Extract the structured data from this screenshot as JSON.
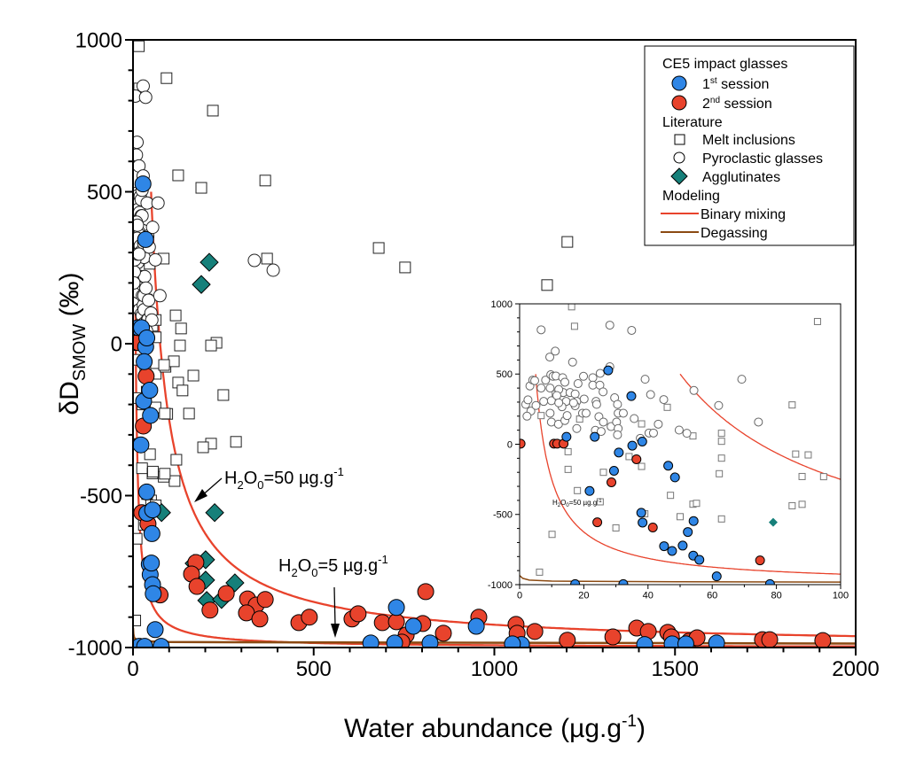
{
  "chart_data": [
    {
      "type": "scatter",
      "panel": "main",
      "xlabel": "Water abundance (µg.g",
      "xlabel_sup": "-1",
      "xlabel_end": ")",
      "ylabel_delta": "δD",
      "ylabel_sub": "SMOW",
      "ylabel_unit": " (‰)",
      "xlim": [
        0,
        2000
      ],
      "ylim": [
        -1000,
        1000
      ],
      "xticks": [
        0,
        500,
        1000,
        1500,
        2000
      ],
      "yticks": [
        -1000,
        -500,
        0,
        500,
        1000
      ],
      "grid": false,
      "legend_placement": "top-right",
      "legend": {
        "group1": "CE5 impact glasses",
        "s1_pre": "1",
        "s1_sup": "st",
        "s1_post": " session",
        "s2_pre": "2",
        "s2_sup": "nd",
        "s2_post": " session",
        "group2": "Literature",
        "melt": "Melt inclusions",
        "pyro": "Pyroclastic glasses",
        "agg": "Agglutinates",
        "group3": "Modeling",
        "mix": "Binary mixing",
        "degas": "Degassing"
      },
      "annotations": [
        {
          "pre": "H",
          "sub1": "2",
          "mid": "O",
          "sub2": "0",
          "post": "=50 µg.g",
          "sup": "-1"
        },
        {
          "pre": "H",
          "sub1": "2",
          "mid": "O",
          "sub2": "0",
          "post": "=5 µg.g",
          "sup": "-1"
        }
      ]
    },
    {
      "type": "scatter",
      "panel": "inset",
      "xlim": [
        0,
        100
      ],
      "ylim": [
        -1000,
        1000
      ],
      "xticks": [
        0,
        20,
        40,
        60,
        80,
        100
      ],
      "yticks": [
        -1000,
        -500,
        0,
        500,
        1000
      ],
      "annotation": {
        "pre": "H",
        "sub1": "2",
        "mid": "O",
        "sub2": "0",
        "post": "=50 µg.g",
        "sup": "-1"
      }
    }
  ],
  "series": {
    "session1": {
      "color": "#2f86e6",
      "points": [
        [
          27.6,
          526
        ],
        [
          14.6,
          53
        ],
        [
          23.4,
          53
        ],
        [
          34.8,
          343
        ],
        [
          35.1,
          -10
        ],
        [
          38.2,
          19
        ],
        [
          30.9,
          -59
        ],
        [
          29.4,
          -189
        ],
        [
          21.8,
          -333
        ],
        [
          46.3,
          -153
        ],
        [
          48.4,
          -236
        ],
        [
          37.9,
          -488
        ],
        [
          38.3,
          -558
        ],
        [
          54.2,
          -547
        ],
        [
          52.4,
          -625
        ],
        [
          45.0,
          -726
        ],
        [
          47.5,
          -760
        ],
        [
          50.8,
          -722
        ],
        [
          54.1,
          -793
        ],
        [
          56.0,
          -823
        ],
        [
          61.4,
          -941
        ],
        [
          17.3,
          -996
        ],
        [
          32.3,
          -996
        ],
        [
          78,
          -996
        ],
        [
          729,
          -868
        ],
        [
          776,
          -930
        ],
        [
          950,
          -930
        ],
        [
          724,
          -985
        ],
        [
          658,
          -985
        ],
        [
          822,
          -985
        ],
        [
          1075,
          -990
        ],
        [
          1416,
          -990
        ],
        [
          1492,
          -988
        ],
        [
          1615,
          -985
        ],
        [
          1050,
          -988
        ],
        [
          1530,
          -988
        ]
      ]
    },
    "session2": {
      "color": "#e8432c",
      "points": [
        [
          0.3,
          4
        ],
        [
          10.7,
          4
        ],
        [
          11.7,
          4
        ],
        [
          13.7,
          4
        ],
        [
          36.4,
          -107
        ],
        [
          28.6,
          -271
        ],
        [
          24.2,
          -556
        ],
        [
          41.5,
          -593
        ],
        [
          74.9,
          -827
        ],
        [
          174,
          -720
        ],
        [
          162,
          -758
        ],
        [
          177,
          -799
        ],
        [
          213,
          -877
        ],
        [
          258,
          -822
        ],
        [
          317,
          -840
        ],
        [
          341,
          -860
        ],
        [
          366,
          -842
        ],
        [
          314,
          -886
        ],
        [
          351,
          -906
        ],
        [
          459,
          -918
        ],
        [
          488,
          -900
        ],
        [
          606,
          -906
        ],
        [
          623,
          -889
        ],
        [
          690,
          -918
        ],
        [
          729,
          -915
        ],
        [
          756,
          -959
        ],
        [
          744,
          -982
        ],
        [
          802,
          -921
        ],
        [
          810,
          -816
        ],
        [
          859,
          -953
        ],
        [
          957,
          -900
        ],
        [
          1060,
          -924
        ],
        [
          1063,
          -953
        ],
        [
          1112,
          -947
        ],
        [
          1202,
          -976
        ],
        [
          1328,
          -965
        ],
        [
          1394,
          -936
        ],
        [
          1426,
          -947
        ],
        [
          1480,
          -950
        ],
        [
          1490,
          -965
        ],
        [
          1539,
          -979
        ],
        [
          1561,
          -968
        ],
        [
          1742,
          -974
        ],
        [
          1762,
          -974
        ],
        [
          1909,
          -977
        ]
      ]
    },
    "melt_inclusions": {
      "color": "#ffffff",
      "points": [
        [
          16.2,
          979
        ],
        [
          17.1,
          840
        ],
        [
          92.8,
          874
        ],
        [
          6.7,
          204
        ],
        [
          11.1,
          358
        ],
        [
          18.7,
          179
        ],
        [
          38,
          145
        ],
        [
          46,
          263
        ],
        [
          54,
          59
        ],
        [
          62.9,
          78
        ],
        [
          62.9,
          21
        ],
        [
          62.9,
          -99
        ],
        [
          62.2,
          -210
        ],
        [
          89.9,
          -76
        ],
        [
          94.7,
          -231
        ],
        [
          84.9,
          280
        ],
        [
          84.9,
          -438
        ],
        [
          15.1,
          -53
        ],
        [
          15.1,
          -179
        ],
        [
          26.1,
          -200
        ],
        [
          34.1,
          -88
        ],
        [
          38,
          -158
        ],
        [
          18,
          -330
        ],
        [
          25.1,
          -410
        ],
        [
          47,
          -364
        ],
        [
          54,
          -427
        ],
        [
          55.1,
          -421
        ],
        [
          50,
          -516
        ],
        [
          62.9,
          -532
        ],
        [
          30,
          -596
        ],
        [
          10.1,
          -642
        ],
        [
          6.2,
          -911
        ],
        [
          39,
          -495
        ],
        [
          221,
          767
        ],
        [
          125,
          554
        ],
        [
          189,
          513
        ],
        [
          366,
          537
        ],
        [
          680,
          315
        ],
        [
          753,
          251
        ],
        [
          371,
          280
        ],
        [
          1202,
          335
        ],
        [
          1146,
          193
        ],
        [
          118,
          93
        ],
        [
          133,
          50
        ],
        [
          130,
          -6
        ],
        [
          231,
          3
        ],
        [
          216,
          -6
        ],
        [
          125,
          -128
        ],
        [
          137,
          -154
        ],
        [
          167,
          -105
        ],
        [
          155,
          -230
        ],
        [
          113,
          -58
        ],
        [
          250,
          -169
        ],
        [
          216,
          -329
        ],
        [
          285,
          -323
        ],
        [
          194,
          -341
        ],
        [
          120,
          -382
        ],
        [
          115,
          -452
        ],
        [
          86,
          -70
        ],
        [
          88,
          -428
        ],
        [
          88,
          -230
        ]
      ]
    },
    "pyroclastic_glasses": {
      "color": "#ffffff",
      "points": [
        [
          6.7,
          815
        ],
        [
          9.4,
          621
        ],
        [
          11.1,
          663
        ],
        [
          16.5,
          585
        ],
        [
          28.1,
          848
        ],
        [
          34.9,
          811
        ],
        [
          28.1,
          552
        ],
        [
          1.9,
          284
        ],
        [
          2.6,
          316
        ],
        [
          3.2,
          415
        ],
        [
          4.1,
          457
        ],
        [
          4.7,
          453
        ],
        [
          6.7,
          400
        ],
        [
          8.1,
          457
        ],
        [
          9.7,
          495
        ],
        [
          10.4,
          484
        ],
        [
          11.3,
          486
        ],
        [
          13.4,
          474
        ],
        [
          14.1,
          442
        ],
        [
          18.2,
          432
        ],
        [
          19.9,
          484
        ],
        [
          22.8,
          474
        ],
        [
          25.1,
          505
        ],
        [
          22.8,
          421
        ],
        [
          25,
          421
        ],
        [
          26,
          373
        ],
        [
          13.6,
          368
        ],
        [
          15.7,
          368
        ],
        [
          17.3,
          358
        ],
        [
          9.5,
          400
        ],
        [
          12.2,
          390
        ],
        [
          7.5,
          305
        ],
        [
          9.9,
          310
        ],
        [
          11.6,
          347
        ],
        [
          14.5,
          305
        ],
        [
          17.8,
          305
        ],
        [
          20.1,
          322
        ],
        [
          23.8,
          305
        ],
        [
          24,
          284
        ],
        [
          17.3,
          274
        ],
        [
          13.2,
          267
        ],
        [
          9.5,
          221
        ],
        [
          9.9,
          158
        ],
        [
          12.1,
          143
        ],
        [
          14.1,
          169
        ],
        [
          14.8,
          204
        ],
        [
          17.8,
          112
        ],
        [
          19.6,
          221
        ],
        [
          20.7,
          221
        ],
        [
          24.7,
          196
        ],
        [
          26.1,
          158
        ],
        [
          23.6,
          99
        ],
        [
          25.4,
          91
        ],
        [
          28.5,
          126
        ],
        [
          29.6,
          331
        ],
        [
          30.5,
          284
        ],
        [
          30.7,
          221
        ],
        [
          32.3,
          221
        ],
        [
          30.2,
          158
        ],
        [
          30.7,
          112
        ],
        [
          30.5,
          67
        ],
        [
          35.7,
          183
        ],
        [
          39.1,
          463
        ],
        [
          40.8,
          354
        ],
        [
          44.9,
          318
        ],
        [
          43.2,
          143
        ],
        [
          40.3,
          80
        ],
        [
          41.7,
          80
        ],
        [
          49.7,
          101
        ],
        [
          52.1,
          78
        ],
        [
          54.3,
          383
        ],
        [
          62,
          276
        ],
        [
          74.4,
          158
        ],
        [
          69.2,
          463
        ],
        [
          37.6,
          42
        ],
        [
          3.5,
          236
        ],
        [
          2.3,
          200
        ],
        [
          5.1,
          276
        ],
        [
          12.2,
          295
        ],
        [
          16.8,
          295
        ],
        [
          336,
          274
        ],
        [
          388,
          242
        ]
      ]
    },
    "agglutinates": {
      "color": "#16807a",
      "points": [
        [
          79,
          -556
        ],
        [
          211,
          268
        ],
        [
          189,
          195
        ],
        [
          226,
          -556
        ],
        [
          169,
          -723
        ],
        [
          201,
          -711
        ],
        [
          201,
          -778
        ],
        [
          282,
          -787
        ],
        [
          204,
          -845
        ],
        [
          245,
          -842
        ]
      ]
    },
    "binary_mixing": {
      "color": "#e8432c",
      "h2o0": [
        50,
        5
      ],
      "initial_dD": 500,
      "endmember_dD": -1000
    },
    "degassing": {
      "color": "#8b4a12",
      "points": [
        [
          0,
          -935
        ],
        [
          1,
          -955
        ],
        [
          3,
          -968
        ],
        [
          10,
          -975
        ],
        [
          50,
          -980
        ],
        [
          100,
          -982
        ],
        [
          2000,
          -987
        ]
      ]
    }
  }
}
